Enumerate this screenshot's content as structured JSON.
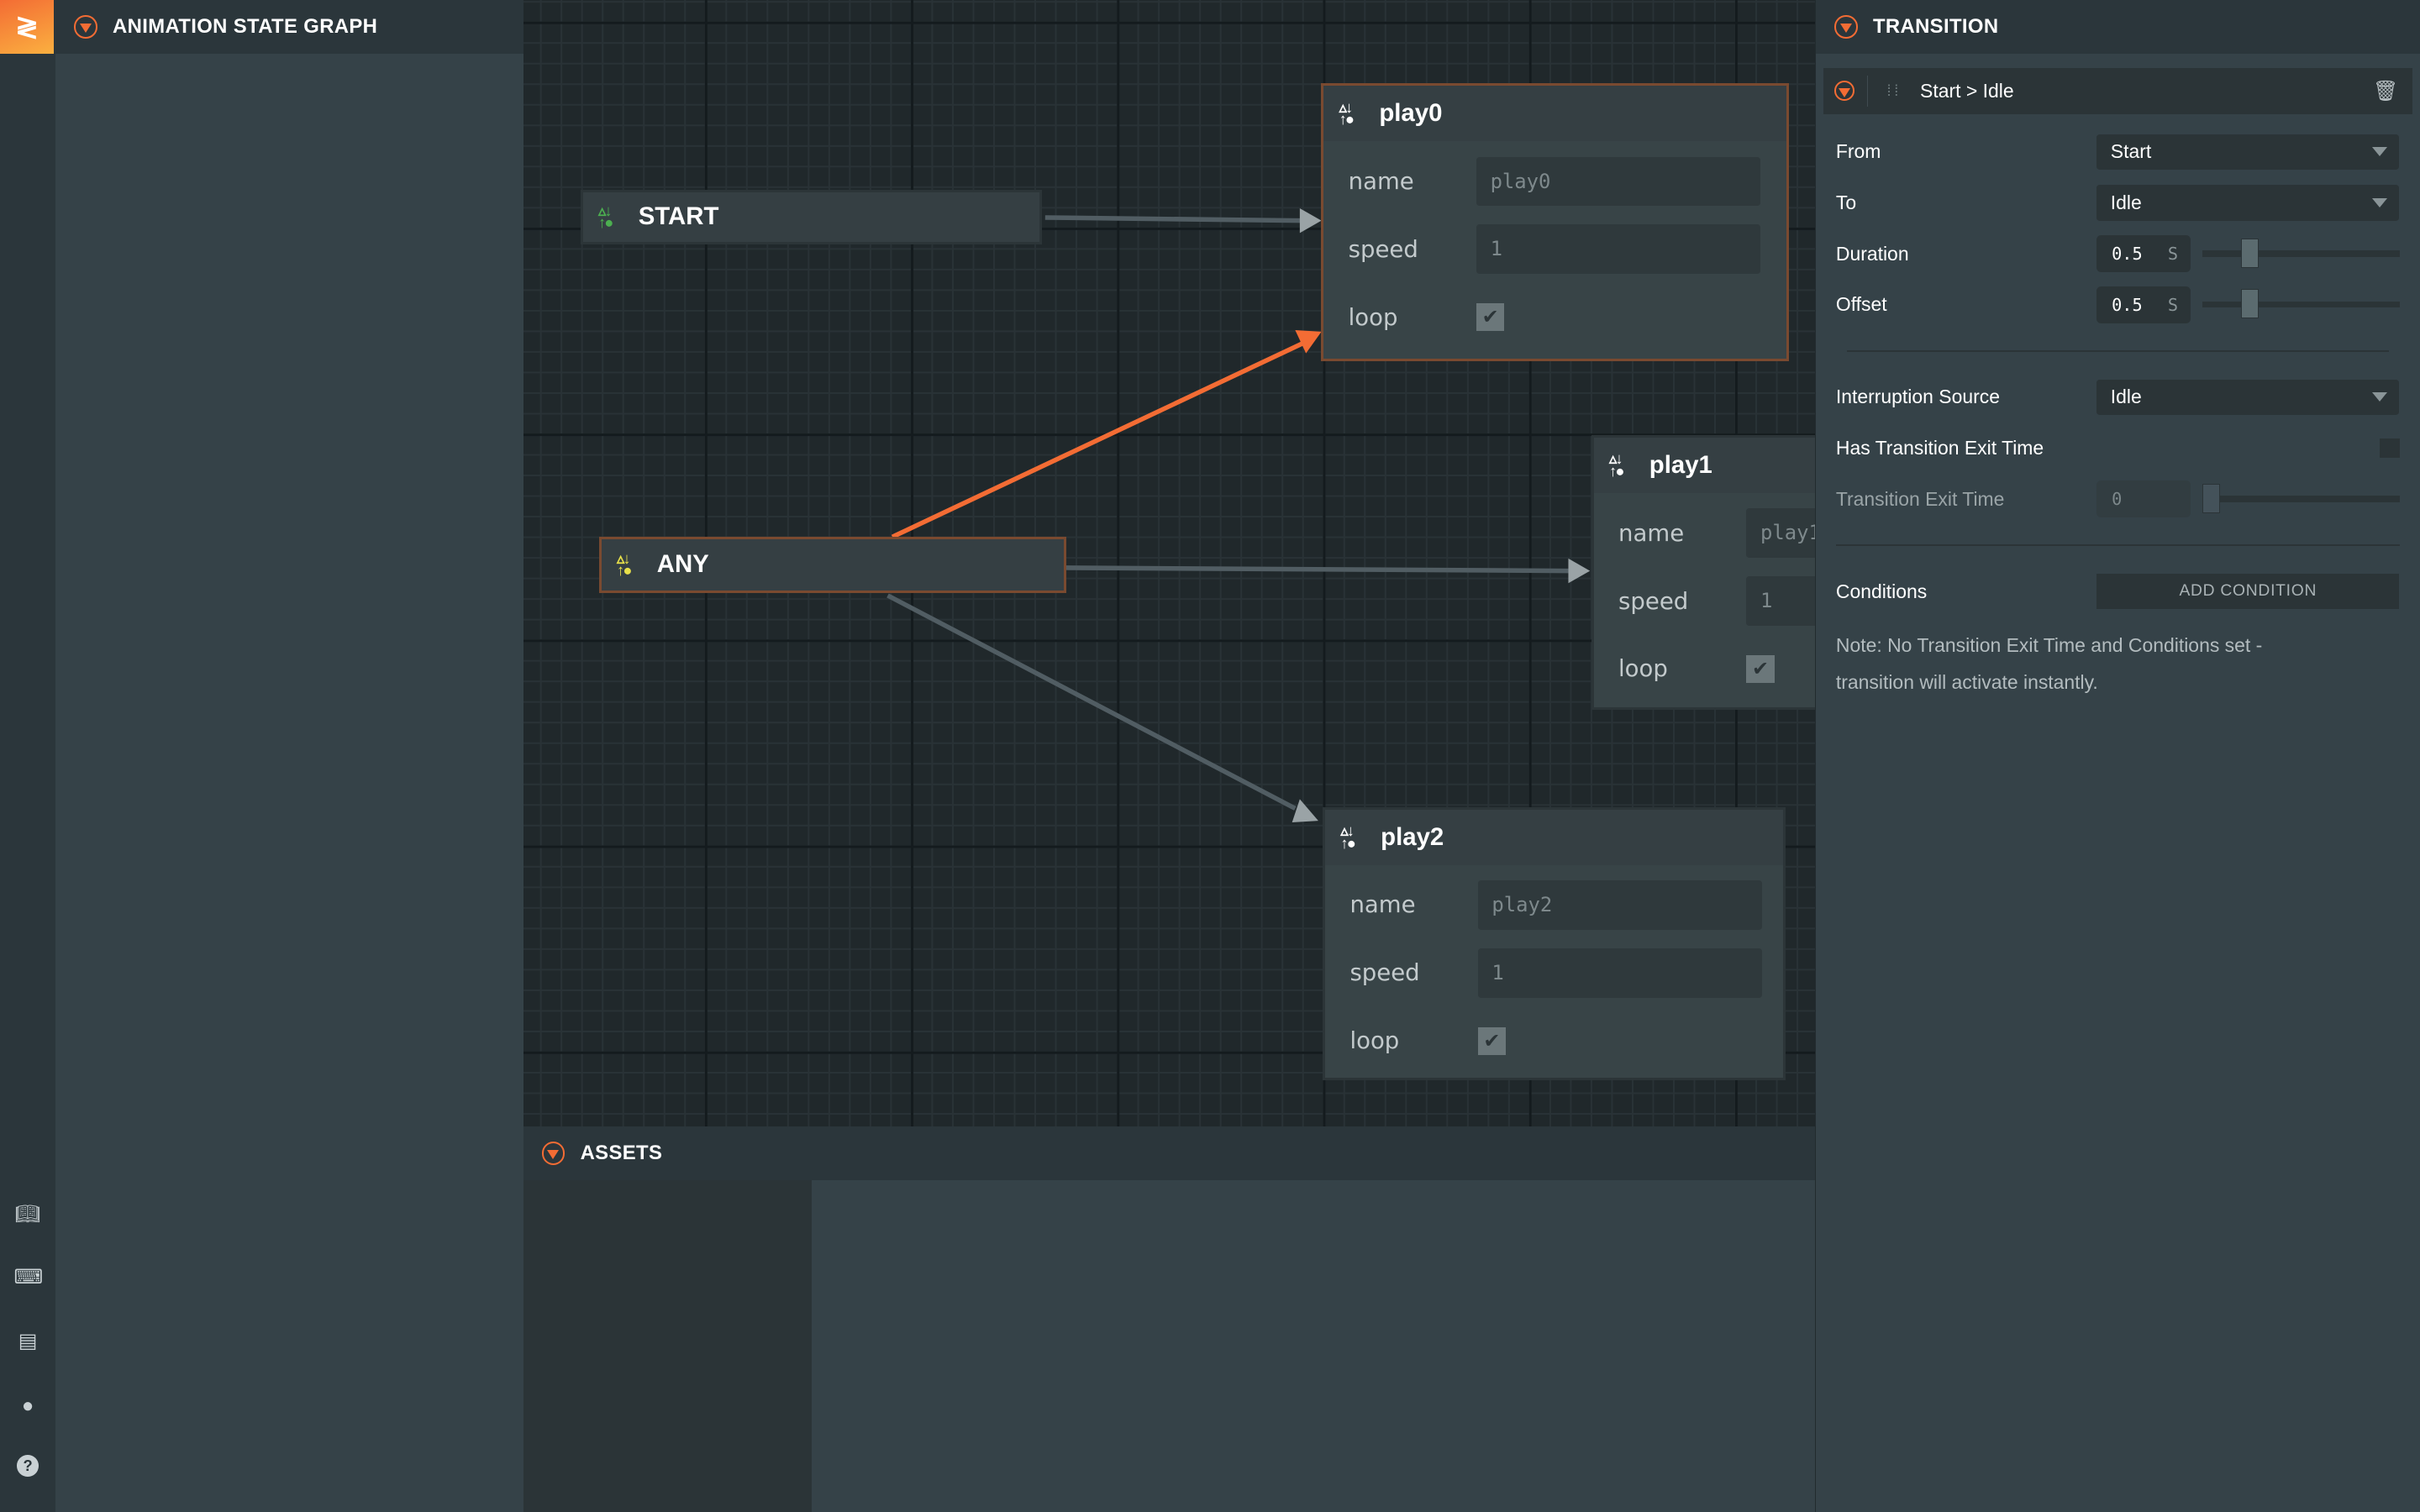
{
  "app": {
    "logo": "playcanvas-logo"
  },
  "sidebar": {
    "icons": [
      "book-icon",
      "keyboard-icon",
      "chat-icon",
      "github-icon",
      "help-icon"
    ]
  },
  "left_panel": {
    "title": "ANIMATION STATE GRAPH"
  },
  "graph": {
    "nodes": [
      {
        "id": "start",
        "title": "START",
        "icon_color": "#4caf50"
      },
      {
        "id": "any",
        "title": "ANY",
        "icon_color": "#e8e04a",
        "selected": true
      },
      {
        "id": "play0",
        "title": "play0",
        "name_label": "name",
        "name": "play0",
        "speed_label": "speed",
        "speed": "1",
        "loop_label": "loop",
        "loop": true,
        "selected": true
      },
      {
        "id": "play1",
        "title": "play1",
        "name_label": "name",
        "name": "play1",
        "speed_label": "speed",
        "speed": "1",
        "loop_label": "loop",
        "loop": true
      },
      {
        "id": "play2",
        "title": "play2",
        "name_label": "name",
        "name": "play2",
        "speed_label": "speed",
        "speed": "1",
        "loop_label": "loop",
        "loop": true
      }
    ],
    "edges": [
      {
        "from": "START",
        "to": "play0",
        "selected": false
      },
      {
        "from": "ANY",
        "to": "play0",
        "selected": true
      },
      {
        "from": "ANY",
        "to": "play1",
        "selected": false
      },
      {
        "from": "ANY",
        "to": "play2",
        "selected": false
      }
    ],
    "accent": "#f36c34"
  },
  "assets": {
    "title": "ASSETS"
  },
  "transition": {
    "title": "TRANSITION",
    "item": "Start > Idle",
    "from_label": "From",
    "from": "Start",
    "to_label": "To",
    "to": "Idle",
    "duration_label": "Duration",
    "duration": "0.5",
    "duration_unit": "S",
    "duration_slider": 0.25,
    "offset_label": "Offset",
    "offset": "0.5",
    "offset_unit": "S",
    "offset_slider": 0.25,
    "interruption_label": "Interruption Source",
    "interruption": "Idle",
    "has_exit_label": "Has Transition Exit Time",
    "has_exit": false,
    "exit_time_label": "Transition Exit Time",
    "exit_time": "0",
    "exit_time_slider": 0,
    "conditions_label": "Conditions",
    "add_condition": "ADD CONDITION",
    "note": "Note: No Transition Exit Time and Conditions set - transition will activate instantly."
  }
}
